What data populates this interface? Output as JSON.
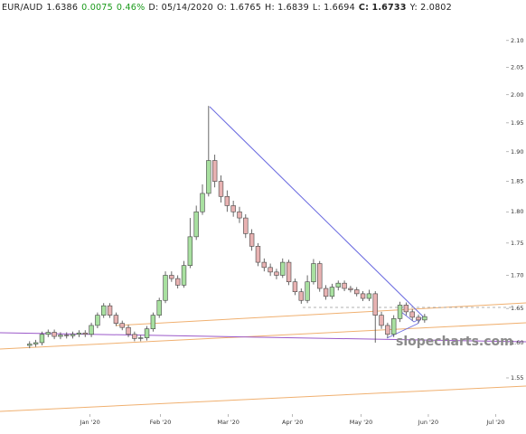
{
  "header": [
    "EUR/AUD",
    "1.6386",
    "0.0075",
    "0.46%",
    "D: 05/14/2020",
    "O: 1.6765",
    "H: 1.6839",
    "L: 1.6694",
    "C:",
    "1.6733",
    "Y: 2.0802"
  ],
  "chart_data": {
    "type": "candlestick",
    "open": [
      1.596,
      1.598,
      1.6,
      1.612,
      1.615,
      1.609,
      1.611,
      1.61,
      1.612,
      1.614,
      1.612,
      1.625,
      1.64,
      1.654,
      1.64,
      1.628,
      1.622,
      1.612,
      1.606,
      1.607,
      1.62,
      1.64,
      1.662,
      1.7,
      1.695,
      1.685,
      1.715,
      1.76,
      1.8,
      1.83,
      1.885,
      1.85,
      1.825,
      1.81,
      1.8,
      1.79,
      1.765,
      1.745,
      1.72,
      1.712,
      1.705,
      1.7,
      1.72,
      1.69,
      1.675,
      1.662,
      1.69,
      1.718,
      1.68,
      1.668,
      1.682,
      1.688,
      1.68,
      1.678,
      1.672,
      1.665,
      1.672,
      1.64,
      1.625,
      1.612,
      1.635,
      1.655,
      1.645,
      1.637,
      1.633
    ],
    "high": [
      1.602,
      1.604,
      1.616,
      1.619,
      1.619,
      1.615,
      1.615,
      1.616,
      1.618,
      1.618,
      1.629,
      1.644,
      1.658,
      1.658,
      1.644,
      1.632,
      1.626,
      1.616,
      1.611,
      1.624,
      1.644,
      1.666,
      1.706,
      1.706,
      1.7,
      1.722,
      1.79,
      1.81,
      1.845,
      1.98,
      1.895,
      1.86,
      1.835,
      1.818,
      1.808,
      1.796,
      1.772,
      1.75,
      1.726,
      1.718,
      1.71,
      1.726,
      1.724,
      1.695,
      1.68,
      1.7,
      1.725,
      1.722,
      1.685,
      1.687,
      1.692,
      1.692,
      1.684,
      1.682,
      1.676,
      1.678,
      1.676,
      1.645,
      1.629,
      1.64,
      1.66,
      1.659,
      1.649,
      1.641,
      1.642
    ],
    "low": [
      1.592,
      1.594,
      1.596,
      1.608,
      1.605,
      1.605,
      1.606,
      1.606,
      1.608,
      1.608,
      1.608,
      1.621,
      1.636,
      1.636,
      1.624,
      1.618,
      1.608,
      1.602,
      1.602,
      1.603,
      1.616,
      1.636,
      1.658,
      1.69,
      1.68,
      1.681,
      1.711,
      1.755,
      1.795,
      1.825,
      1.84,
      1.815,
      1.8,
      1.792,
      1.782,
      1.758,
      1.738,
      1.714,
      1.706,
      1.699,
      1.694,
      1.696,
      1.685,
      1.67,
      1.657,
      1.658,
      1.686,
      1.675,
      1.663,
      1.664,
      1.677,
      1.676,
      1.674,
      1.668,
      1.661,
      1.661,
      1.6,
      1.62,
      1.607,
      1.608,
      1.63,
      1.64,
      1.632,
      1.628,
      1.629
    ],
    "close": [
      1.598,
      1.6,
      1.612,
      1.615,
      1.609,
      1.611,
      1.61,
      1.612,
      1.614,
      1.612,
      1.625,
      1.64,
      1.654,
      1.64,
      1.628,
      1.622,
      1.612,
      1.606,
      1.607,
      1.62,
      1.64,
      1.662,
      1.7,
      1.695,
      1.685,
      1.715,
      1.76,
      1.8,
      1.83,
      1.885,
      1.85,
      1.825,
      1.81,
      1.8,
      1.79,
      1.765,
      1.745,
      1.72,
      1.712,
      1.705,
      1.7,
      1.72,
      1.69,
      1.675,
      1.662,
      1.69,
      1.718,
      1.68,
      1.668,
      1.682,
      1.688,
      1.68,
      1.678,
      1.672,
      1.665,
      1.672,
      1.64,
      1.625,
      1.612,
      1.635,
      1.655,
      1.645,
      1.637,
      1.633,
      1.638
    ],
    "up_color": "#a8e0a0",
    "down_color": "#e8b2b2",
    "log_scale": true,
    "ylim": [
      1.504,
      2.178
    ],
    "yticks": [
      1.55,
      {
        "value": 1.6,
        "label": "1.60"
      },
      1.65,
      {
        "value": 1.7,
        "label": "1.70"
      },
      1.75,
      {
        "value": 1.8,
        "label": "1.80"
      },
      1.85,
      {
        "value": 1.9,
        "label": "1.90"
      },
      1.95,
      {
        "value": 2.0,
        "label": "2.00"
      },
      2.05,
      {
        "value": 2.1,
        "label": "2.10"
      }
    ],
    "xlim": [
      -4.8,
      77.2
    ],
    "xticks": [
      {
        "value": 9.8,
        "label": "Jan '20"
      },
      {
        "value": 21.2,
        "label": "Feb '20"
      },
      {
        "value": 32.2,
        "label": "Mar '20"
      },
      {
        "value": 42.6,
        "label": "Apr '20"
      },
      {
        "value": 53.7,
        "label": "May '20"
      },
      {
        "value": 64.6,
        "label": "Jun '20"
      },
      {
        "value": 75.5,
        "label": "Jul '20"
      }
    ],
    "watermark": "slopecharts.com"
  }
}
